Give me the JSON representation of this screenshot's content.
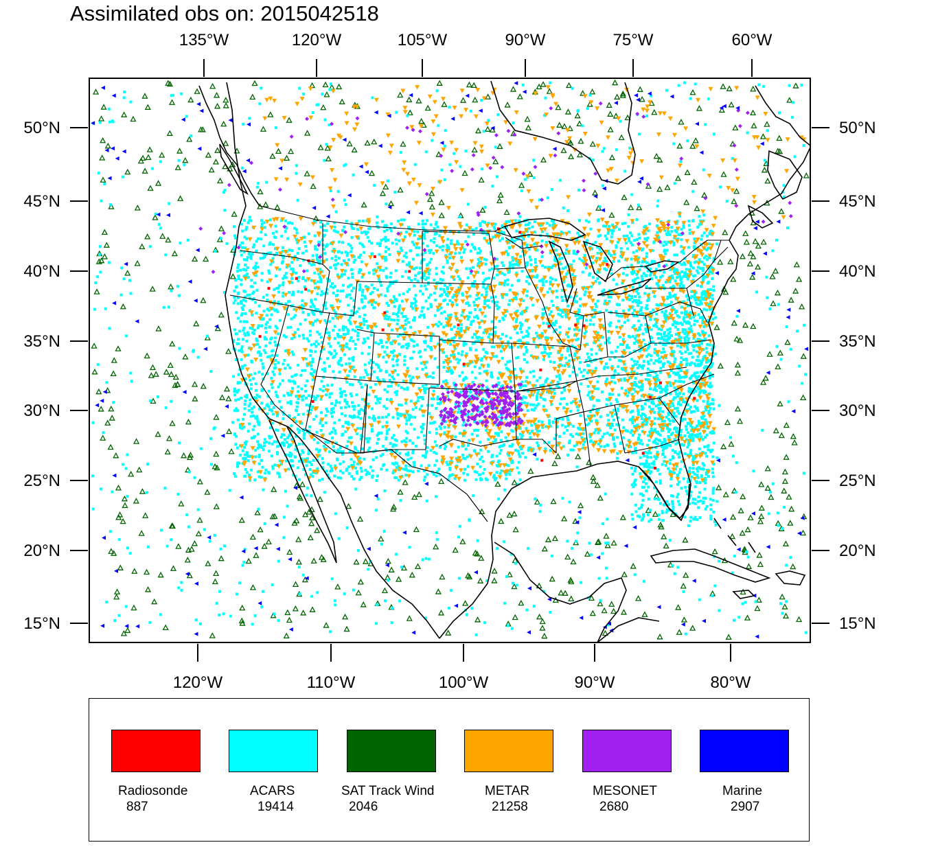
{
  "title": "Assimilated obs on: 2015042518",
  "top_lon_labels": [
    "135°W",
    "120°W",
    "105°W",
    "90°W",
    "75°W",
    "60°W"
  ],
  "bottom_lon_labels": [
    "120°W",
    "110°W",
    "100°W",
    "90°W",
    "80°W"
  ],
  "lat_labels": [
    "50°N",
    "45°N",
    "40°N",
    "35°N",
    "30°N",
    "25°N",
    "20°N",
    "15°N"
  ],
  "colors": {
    "radiosonde": "#ff0000",
    "acars": "#00ffff",
    "sat_track_wind": "#006400",
    "metar": "#ffa500",
    "mesonet": "#a020f0",
    "marine": "#0000ff",
    "coast": "#000000"
  },
  "legend": [
    {
      "name": "Radiosonde",
      "count": "887",
      "color": "#ff0000"
    },
    {
      "name": "ACARS",
      "count": "19414",
      "color": "#00ffff"
    },
    {
      "name": "SAT Track Wind",
      "count": "2046",
      "color": "#006400"
    },
    {
      "name": "METAR",
      "count": "21258",
      "color": "#ffa500"
    },
    {
      "name": "MESONET",
      "count": "2680",
      "color": "#a020f0"
    },
    {
      "name": "Marine",
      "count": "2907",
      "color": "#0000ff"
    }
  ],
  "map": {
    "projection": "lambert-conformal",
    "domain": "North America (CONUS, Gulf of Mexico, adjacent oceans)",
    "lat_range": [
      14,
      53
    ],
    "lon_range": [
      -127,
      -59
    ],
    "layers": [
      "coastlines",
      "US state boundaries",
      "country borders",
      "observation markers"
    ]
  }
}
